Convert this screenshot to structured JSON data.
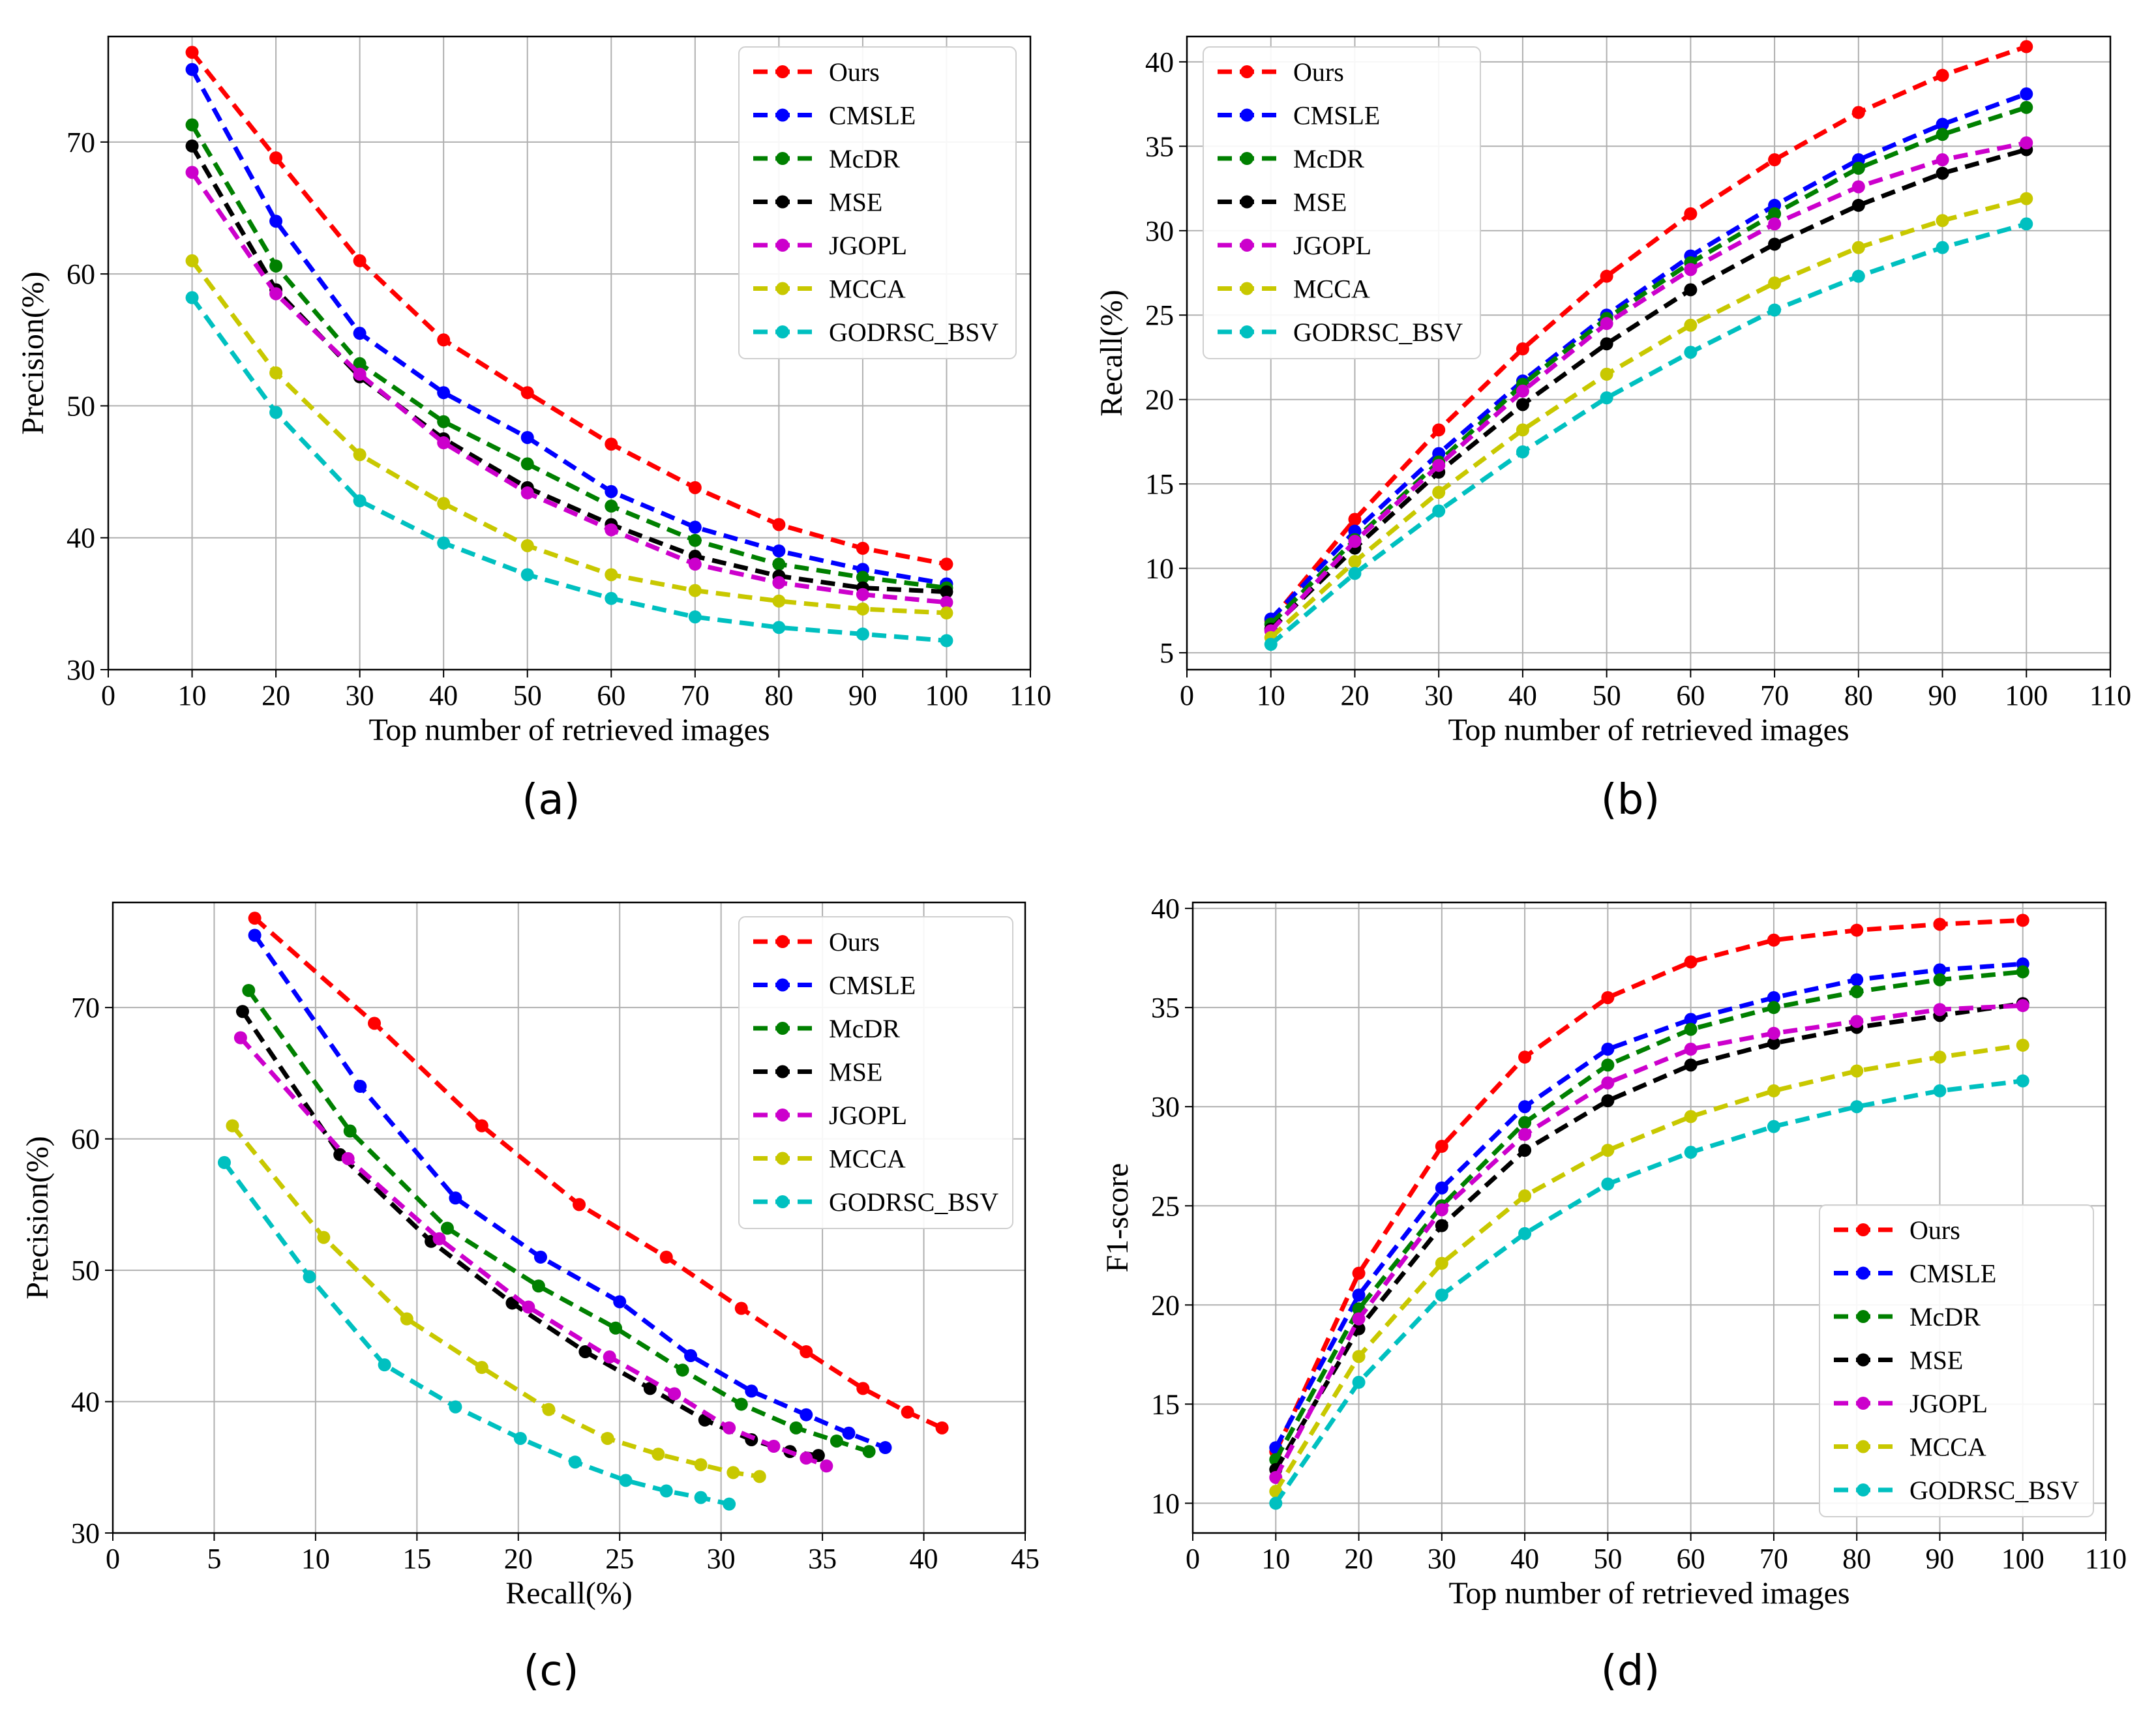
{
  "colors": {
    "Ours": "#ff0000",
    "CMSLE": "#0000ff",
    "McDR": "#008000",
    "MSE": "#000000",
    "JGOPL": "#cc00cc",
    "MCCA": "#c8c800",
    "GODRSC_BSV": "#00c0c0"
  },
  "chart_data": [
    {
      "id": "a",
      "caption": "(a)",
      "type": "line",
      "legend_position": "top-right",
      "grid": true,
      "xlabel": "Top number of retrieved images",
      "ylabel": "Precision(%)",
      "xlim": [
        0,
        110
      ],
      "ylim": [
        30,
        78
      ],
      "xticks": [
        0,
        10,
        20,
        30,
        40,
        50,
        60,
        70,
        80,
        90,
        100,
        110
      ],
      "yticks": [
        30,
        40,
        50,
        60,
        70
      ],
      "xtick_labels": [
        "0",
        "10",
        "20",
        "30",
        "40",
        "50",
        "60",
        "70",
        "80",
        "90",
        "100",
        "110"
      ],
      "ytick_labels": [
        "30",
        "40",
        "50",
        "60",
        "70"
      ],
      "series": [
        {
          "name": "Ours",
          "x": [
            10,
            20,
            30,
            40,
            50,
            60,
            70,
            80,
            90,
            100
          ],
          "y": [
            76.8,
            68.8,
            61.0,
            55.0,
            51.0,
            47.1,
            43.8,
            41.0,
            39.2,
            38.0
          ]
        },
        {
          "name": "CMSLE",
          "x": [
            10,
            20,
            30,
            40,
            50,
            60,
            70,
            80,
            90,
            100
          ],
          "y": [
            75.5,
            64.0,
            55.5,
            51.0,
            47.6,
            43.5,
            40.8,
            39.0,
            37.6,
            36.5
          ]
        },
        {
          "name": "McDR",
          "x": [
            10,
            20,
            30,
            40,
            50,
            60,
            70,
            80,
            90,
            100
          ],
          "y": [
            71.3,
            60.6,
            53.2,
            48.8,
            45.6,
            42.4,
            39.8,
            38.0,
            37.0,
            36.2
          ]
        },
        {
          "name": "MSE",
          "x": [
            10,
            20,
            30,
            40,
            50,
            60,
            70,
            80,
            90,
            100
          ],
          "y": [
            69.7,
            58.8,
            52.2,
            47.5,
            43.8,
            41.0,
            38.6,
            37.1,
            36.2,
            35.9
          ]
        },
        {
          "name": "JGOPL",
          "x": [
            10,
            20,
            30,
            40,
            50,
            60,
            70,
            80,
            90,
            100
          ],
          "y": [
            67.7,
            58.5,
            52.4,
            47.2,
            43.4,
            40.6,
            38.0,
            36.6,
            35.7,
            35.1
          ]
        },
        {
          "name": "MCCA",
          "x": [
            10,
            20,
            30,
            40,
            50,
            60,
            70,
            80,
            90,
            100
          ],
          "y": [
            61.0,
            52.5,
            46.3,
            42.6,
            39.4,
            37.2,
            36.0,
            35.2,
            34.6,
            34.3
          ]
        },
        {
          "name": "GODRSC_BSV",
          "x": [
            10,
            20,
            30,
            40,
            50,
            60,
            70,
            80,
            90,
            100
          ],
          "y": [
            58.2,
            49.5,
            42.8,
            39.6,
            37.2,
            35.4,
            34.0,
            33.2,
            32.7,
            32.2
          ]
        }
      ]
    },
    {
      "id": "b",
      "caption": "(b)",
      "type": "line",
      "legend_position": "top-left",
      "grid": true,
      "xlabel": "Top number of retrieved images",
      "ylabel": "Recall(%)",
      "xlim": [
        0,
        110
      ],
      "ylim": [
        4,
        41.5
      ],
      "xticks": [
        0,
        10,
        20,
        30,
        40,
        50,
        60,
        70,
        80,
        90,
        100,
        110
      ],
      "yticks": [
        5,
        10,
        15,
        20,
        25,
        30,
        35,
        40
      ],
      "xtick_labels": [
        "0",
        "10",
        "20",
        "30",
        "40",
        "50",
        "60",
        "70",
        "80",
        "90",
        "100",
        "110"
      ],
      "ytick_labels": [
        "5",
        "10",
        "15",
        "20",
        "25",
        "30",
        "35",
        "40"
      ],
      "series": [
        {
          "name": "Ours",
          "x": [
            10,
            20,
            30,
            40,
            50,
            60,
            70,
            80,
            90,
            100
          ],
          "y": [
            6.9,
            12.9,
            18.2,
            23.0,
            27.3,
            31.0,
            34.2,
            37.0,
            39.2,
            40.9
          ]
        },
        {
          "name": "CMSLE",
          "x": [
            10,
            20,
            30,
            40,
            50,
            60,
            70,
            80,
            90,
            100
          ],
          "y": [
            7.0,
            12.2,
            16.8,
            21.1,
            25.0,
            28.5,
            31.5,
            34.2,
            36.3,
            38.1
          ]
        },
        {
          "name": "McDR",
          "x": [
            10,
            20,
            30,
            40,
            50,
            60,
            70,
            80,
            90,
            100
          ],
          "y": [
            6.7,
            11.7,
            16.3,
            20.9,
            24.8,
            28.1,
            31.0,
            33.7,
            35.7,
            37.3
          ]
        },
        {
          "name": "MSE",
          "x": [
            10,
            20,
            30,
            40,
            50,
            60,
            70,
            80,
            90,
            100
          ],
          "y": [
            6.4,
            11.2,
            15.7,
            19.7,
            23.3,
            26.5,
            29.2,
            31.5,
            33.4,
            34.8
          ]
        },
        {
          "name": "JGOPL",
          "x": [
            10,
            20,
            30,
            40,
            50,
            60,
            70,
            80,
            90,
            100
          ],
          "y": [
            6.3,
            11.6,
            16.1,
            20.5,
            24.5,
            27.7,
            30.4,
            32.6,
            34.2,
            35.2
          ]
        },
        {
          "name": "MCCA",
          "x": [
            10,
            20,
            30,
            40,
            50,
            60,
            70,
            80,
            90,
            100
          ],
          "y": [
            5.9,
            10.4,
            14.5,
            18.2,
            21.5,
            24.4,
            26.9,
            29.0,
            30.6,
            31.9
          ]
        },
        {
          "name": "GODRSC_BSV",
          "x": [
            10,
            20,
            30,
            40,
            50,
            60,
            70,
            80,
            90,
            100
          ],
          "y": [
            5.5,
            9.7,
            13.4,
            16.9,
            20.1,
            22.8,
            25.3,
            27.3,
            29.0,
            30.4
          ]
        }
      ]
    },
    {
      "id": "c",
      "caption": "(c)",
      "type": "line",
      "legend_position": "top-right",
      "grid": true,
      "xlabel": "Recall(%)",
      "ylabel": "Precision(%)",
      "xlim": [
        0,
        45
      ],
      "ylim": [
        30,
        78
      ],
      "xticks": [
        0,
        5,
        10,
        15,
        20,
        25,
        30,
        35,
        40,
        45
      ],
      "yticks": [
        30,
        40,
        50,
        60,
        70
      ],
      "xtick_labels": [
        "0",
        "5",
        "10",
        "15",
        "20",
        "25",
        "30",
        "35",
        "40",
        "45"
      ],
      "ytick_labels": [
        "30",
        "40",
        "50",
        "60",
        "70"
      ],
      "series": [
        {
          "name": "Ours",
          "x": [
            7.0,
            12.9,
            18.2,
            23.0,
            27.3,
            31.0,
            34.2,
            37.0,
            39.2,
            40.9
          ],
          "y": [
            76.8,
            68.8,
            61.0,
            55.0,
            51.0,
            47.1,
            43.8,
            41.0,
            39.2,
            38.0
          ]
        },
        {
          "name": "CMSLE",
          "x": [
            7.0,
            12.2,
            16.9,
            21.1,
            25.0,
            28.5,
            31.5,
            34.2,
            36.3,
            38.1
          ],
          "y": [
            75.5,
            64.0,
            55.5,
            51.0,
            47.6,
            43.5,
            40.8,
            39.0,
            37.6,
            36.5
          ]
        },
        {
          "name": "McDR",
          "x": [
            6.7,
            11.7,
            16.5,
            21.0,
            24.8,
            28.1,
            31.0,
            33.7,
            35.7,
            37.3
          ],
          "y": [
            71.3,
            60.6,
            53.2,
            48.8,
            45.6,
            42.4,
            39.8,
            38.0,
            37.0,
            36.2
          ]
        },
        {
          "name": "MSE",
          "x": [
            6.4,
            11.2,
            15.7,
            19.7,
            23.3,
            26.5,
            29.2,
            31.5,
            33.4,
            34.8
          ],
          "y": [
            69.7,
            58.8,
            52.2,
            47.5,
            43.8,
            41.0,
            38.6,
            37.1,
            36.2,
            35.9
          ]
        },
        {
          "name": "JGOPL",
          "x": [
            6.3,
            11.6,
            16.1,
            20.5,
            24.5,
            27.7,
            30.4,
            32.6,
            34.2,
            35.2
          ],
          "y": [
            67.7,
            58.5,
            52.4,
            47.2,
            43.4,
            40.6,
            38.0,
            36.6,
            35.7,
            35.1
          ]
        },
        {
          "name": "MCCA",
          "x": [
            5.9,
            10.4,
            14.5,
            18.2,
            21.5,
            24.4,
            26.9,
            29.0,
            30.6,
            31.9
          ],
          "y": [
            61.0,
            52.5,
            46.3,
            42.6,
            39.4,
            37.2,
            36.0,
            35.2,
            34.6,
            34.3
          ]
        },
        {
          "name": "GODRSC_BSV",
          "x": [
            5.5,
            9.7,
            13.4,
            16.9,
            20.1,
            22.8,
            25.3,
            27.3,
            29.0,
            30.4
          ],
          "y": [
            58.2,
            49.5,
            42.8,
            39.6,
            37.2,
            35.4,
            34.0,
            33.2,
            32.7,
            32.2
          ]
        }
      ]
    },
    {
      "id": "d",
      "caption": "(d)",
      "type": "line",
      "legend_position": "bottom-right",
      "grid": true,
      "xlabel": "Top number of retrieved images",
      "ylabel": "F1-score",
      "xlim": [
        0,
        110
      ],
      "ylim": [
        8.5,
        40.3
      ],
      "xticks": [
        0,
        10,
        20,
        30,
        40,
        50,
        60,
        70,
        80,
        90,
        100,
        110
      ],
      "yticks": [
        10,
        15,
        20,
        25,
        30,
        35,
        40
      ],
      "xtick_labels": [
        "0",
        "10",
        "20",
        "30",
        "40",
        "50",
        "60",
        "70",
        "80",
        "90",
        "100",
        "110"
      ],
      "ytick_labels": [
        "10",
        "15",
        "20",
        "25",
        "30",
        "35",
        "40"
      ],
      "series": [
        {
          "name": "Ours",
          "x": [
            10,
            20,
            30,
            40,
            50,
            60,
            70,
            80,
            90,
            100
          ],
          "y": [
            12.6,
            21.6,
            28.0,
            32.5,
            35.5,
            37.3,
            38.4,
            38.9,
            39.2,
            39.4
          ]
        },
        {
          "name": "CMSLE",
          "x": [
            10,
            20,
            30,
            40,
            50,
            60,
            70,
            80,
            90,
            100
          ],
          "y": [
            12.8,
            20.5,
            25.9,
            30.0,
            32.9,
            34.4,
            35.5,
            36.4,
            36.9,
            37.2
          ]
        },
        {
          "name": "McDR",
          "x": [
            10,
            20,
            30,
            40,
            50,
            60,
            70,
            80,
            90,
            100
          ],
          "y": [
            12.2,
            19.8,
            25.0,
            29.2,
            32.1,
            33.9,
            35.0,
            35.8,
            36.4,
            36.8
          ]
        },
        {
          "name": "MSE",
          "x": [
            10,
            20,
            30,
            40,
            50,
            60,
            70,
            80,
            90,
            100
          ],
          "y": [
            11.7,
            18.8,
            24.0,
            27.8,
            30.3,
            32.1,
            33.2,
            34.0,
            34.6,
            35.2
          ]
        },
        {
          "name": "JGOPL",
          "x": [
            10,
            20,
            30,
            40,
            50,
            60,
            70,
            80,
            90,
            100
          ],
          "y": [
            11.3,
            19.3,
            24.8,
            28.6,
            31.2,
            32.9,
            33.7,
            34.3,
            34.9,
            35.1
          ]
        },
        {
          "name": "MCCA",
          "x": [
            10,
            20,
            30,
            40,
            50,
            60,
            70,
            80,
            90,
            100
          ],
          "y": [
            10.6,
            17.4,
            22.1,
            25.5,
            27.8,
            29.5,
            30.8,
            31.8,
            32.5,
            33.1
          ]
        },
        {
          "name": "GODRSC_BSV",
          "x": [
            10,
            20,
            30,
            40,
            50,
            60,
            70,
            80,
            90,
            100
          ],
          "y": [
            10.0,
            16.1,
            20.5,
            23.6,
            26.1,
            27.7,
            29.0,
            30.0,
            30.8,
            31.3
          ]
        }
      ]
    }
  ]
}
